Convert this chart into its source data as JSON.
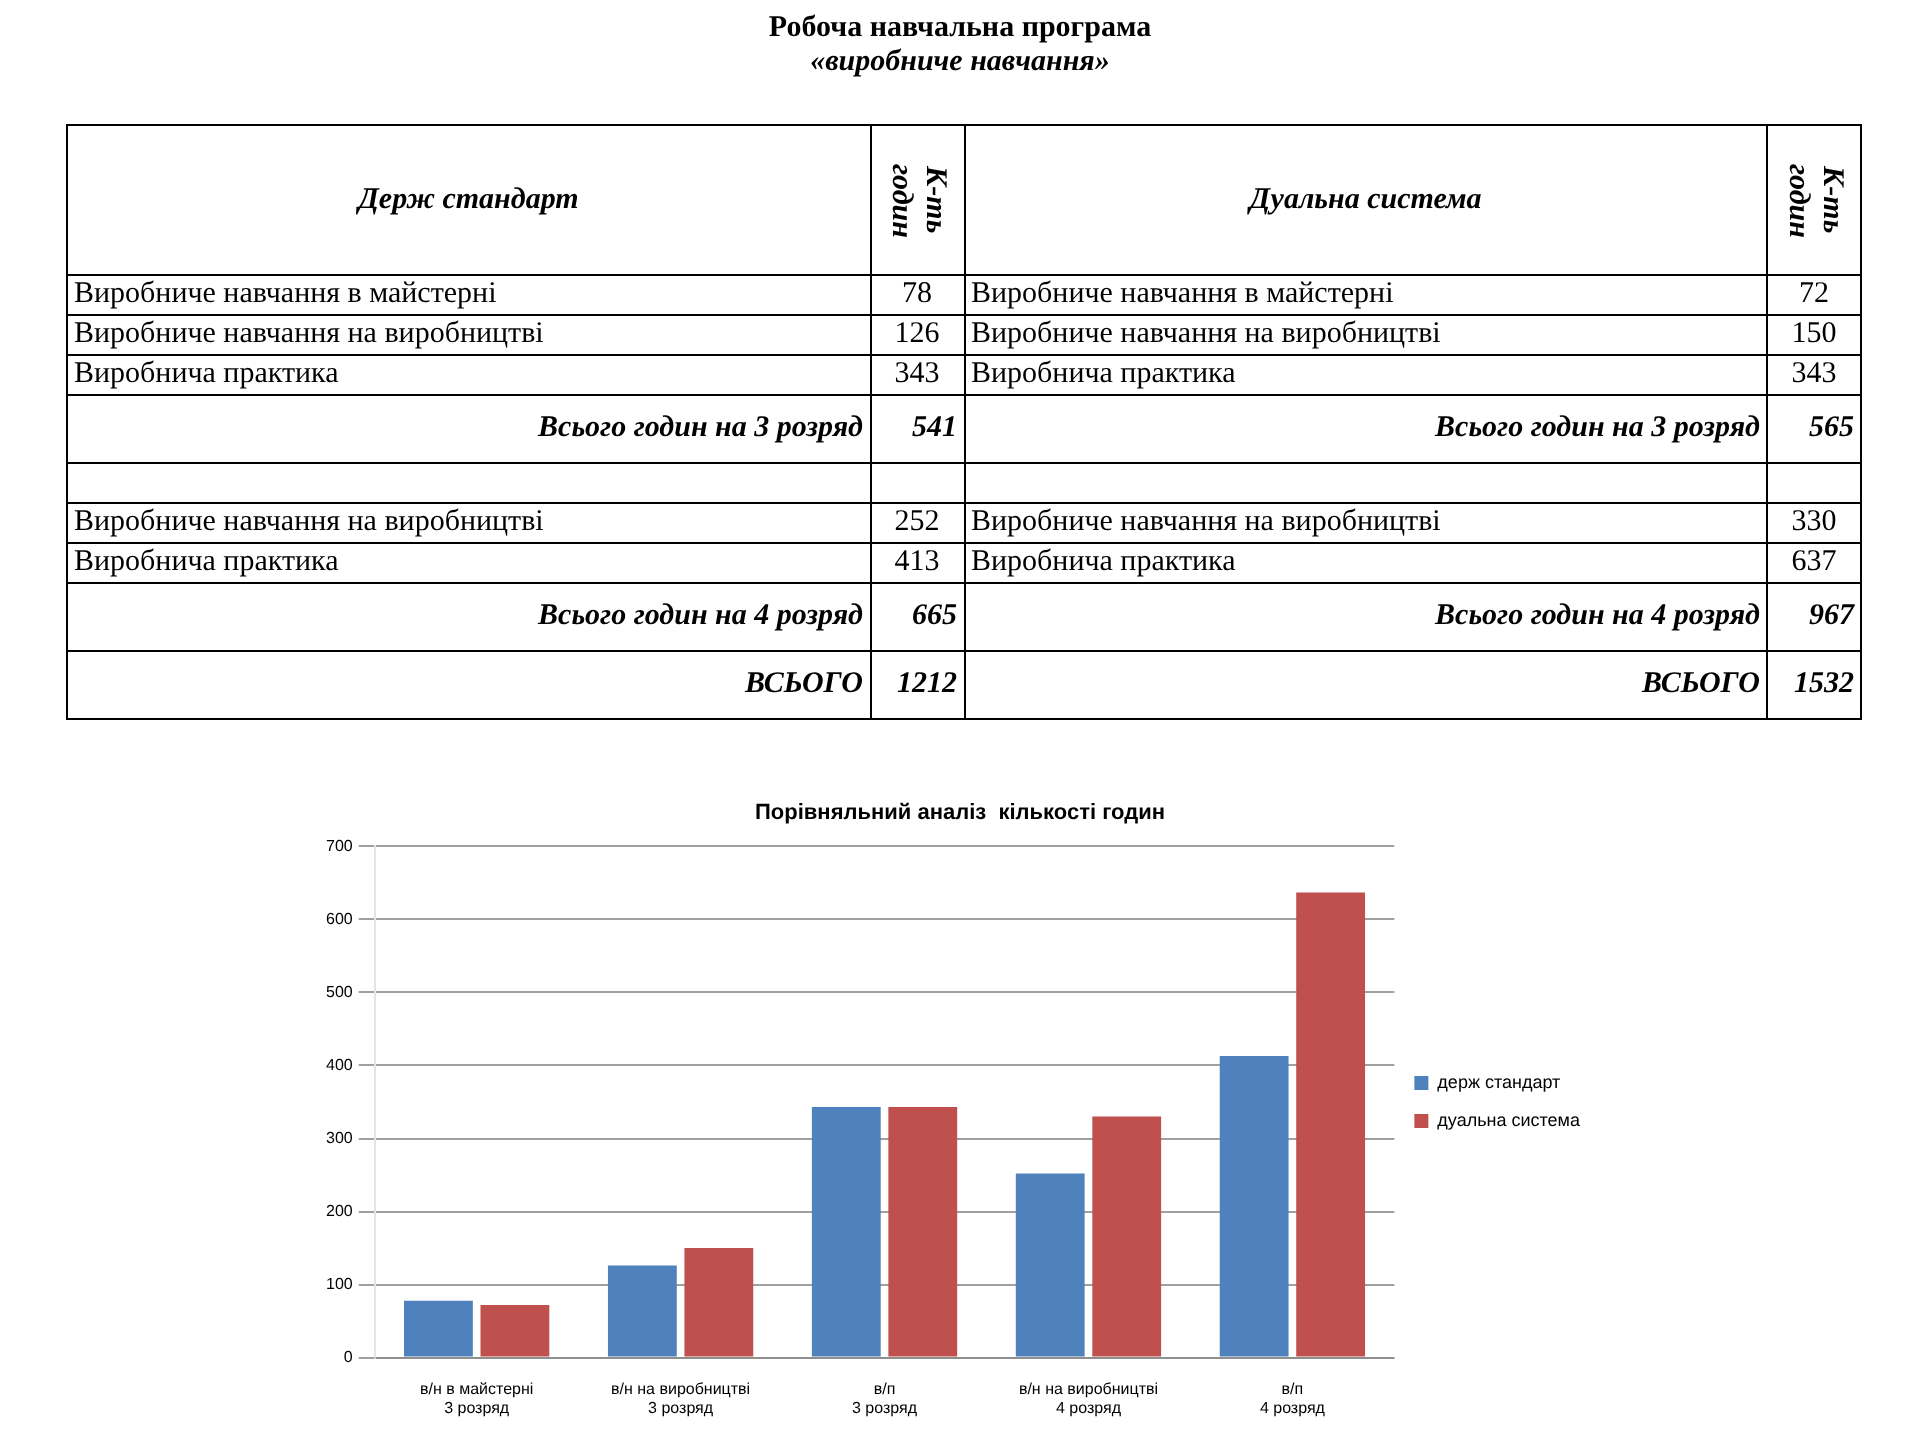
{
  "chart_data": {
    "type": "bar",
    "title": "Порівняльний аналіз  кількості годин",
    "categories": [
      "в/н в майстерні\n3 розряд",
      "в/н на виробництві\n3 розряд",
      "в/п\n3 розряд",
      "в/н на виробництві\n4 розряд",
      "в/п\n4 розряд"
    ],
    "series": [
      {
        "name": "держ стандарт",
        "color": "#4f81bd",
        "values": [
          78,
          126,
          343,
          252,
          413
        ]
      },
      {
        "name": "дуальна система",
        "color": "#c0504d",
        "values": [
          72,
          150,
          343,
          330,
          637
        ]
      }
    ],
    "ylim": [
      0,
      700
    ],
    "yticks": [
      0,
      100,
      200,
      300,
      400,
      500,
      600,
      700
    ],
    "grid": "y",
    "legend": "right",
    "annotations": [
      "Робоча навчальна програма",
      "«виробниче навчання»",
      "Держ стандарт",
      "К-ть годин",
      "Дуальна система",
      "К-ть годин",
      "Виробниче навчання в майстерні",
      "78",
      "Виробниче навчання в майстерні",
      "72",
      "Виробниче навчання на виробництві",
      "126",
      "Виробниче навчання на виробництві",
      "150",
      "Виробнича практика",
      "343",
      "Виробнича практика",
      "343",
      "Всього годин на 3 розряд",
      "541",
      "Всього годин  на 3 розряд",
      "565",
      "Виробниче навчання на виробництві",
      "252",
      "Виробниче навчання на виробництві",
      "330",
      "Виробнича практика",
      "413",
      "Виробнича практика",
      "637",
      "Всього годин  на 4 розряд",
      "665",
      "Всього годин  на 4 розряд",
      "967",
      "ВСЬОГО",
      "1212",
      "ВСЬОГО",
      "1532"
    ]
  }
}
